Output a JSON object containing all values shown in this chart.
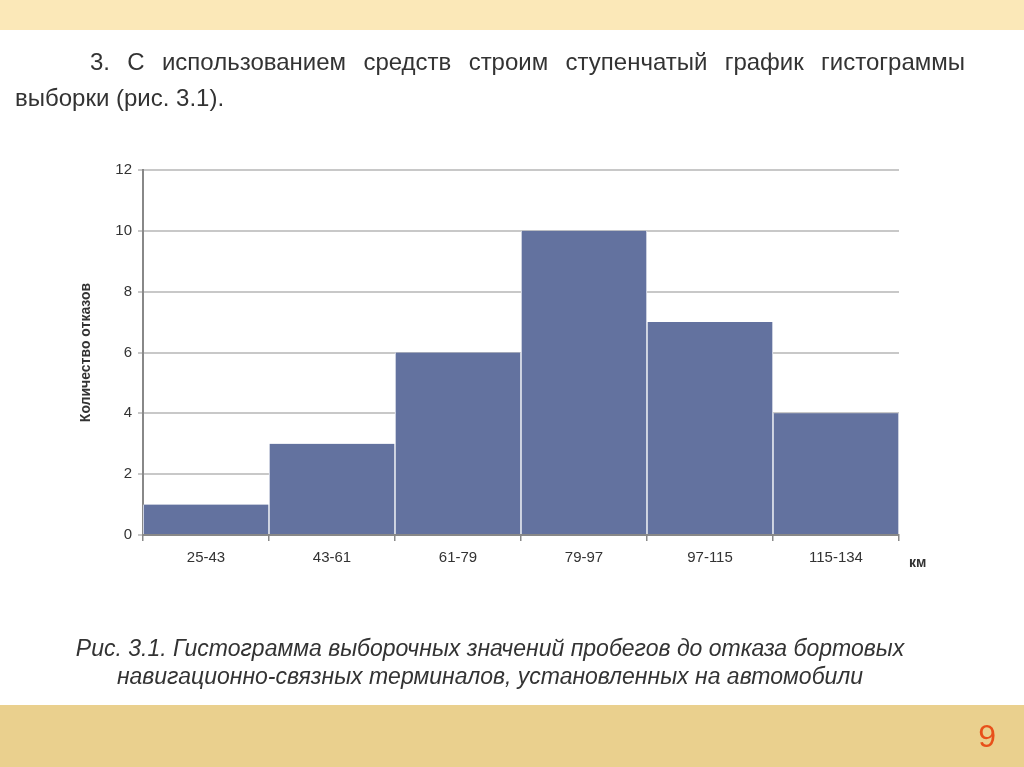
{
  "chart_data": {
    "type": "bar",
    "title": "3. С использованием средств строим ступенчатый график гистограммы выборки (рис. 3.1).",
    "categories": [
      "25-43",
      "43-61",
      "61-79",
      "79-97",
      "97-115",
      "115-134"
    ],
    "values": [
      1,
      3,
      6,
      10,
      7,
      4
    ],
    "color": "#63729f",
    "xlabel": "км",
    "ylabel": "Количество отказов",
    "ylim": [
      0,
      12
    ],
    "yticks": [
      0,
      2,
      4,
      6,
      8,
      10,
      12
    ],
    "grid": "y",
    "annotations": [
      "Рис. 3.1. Гистограмма выборочных значений пробегов до отказа бортовых навигационно-связных терминалов, установленных на автомобили",
      "9"
    ]
  }
}
